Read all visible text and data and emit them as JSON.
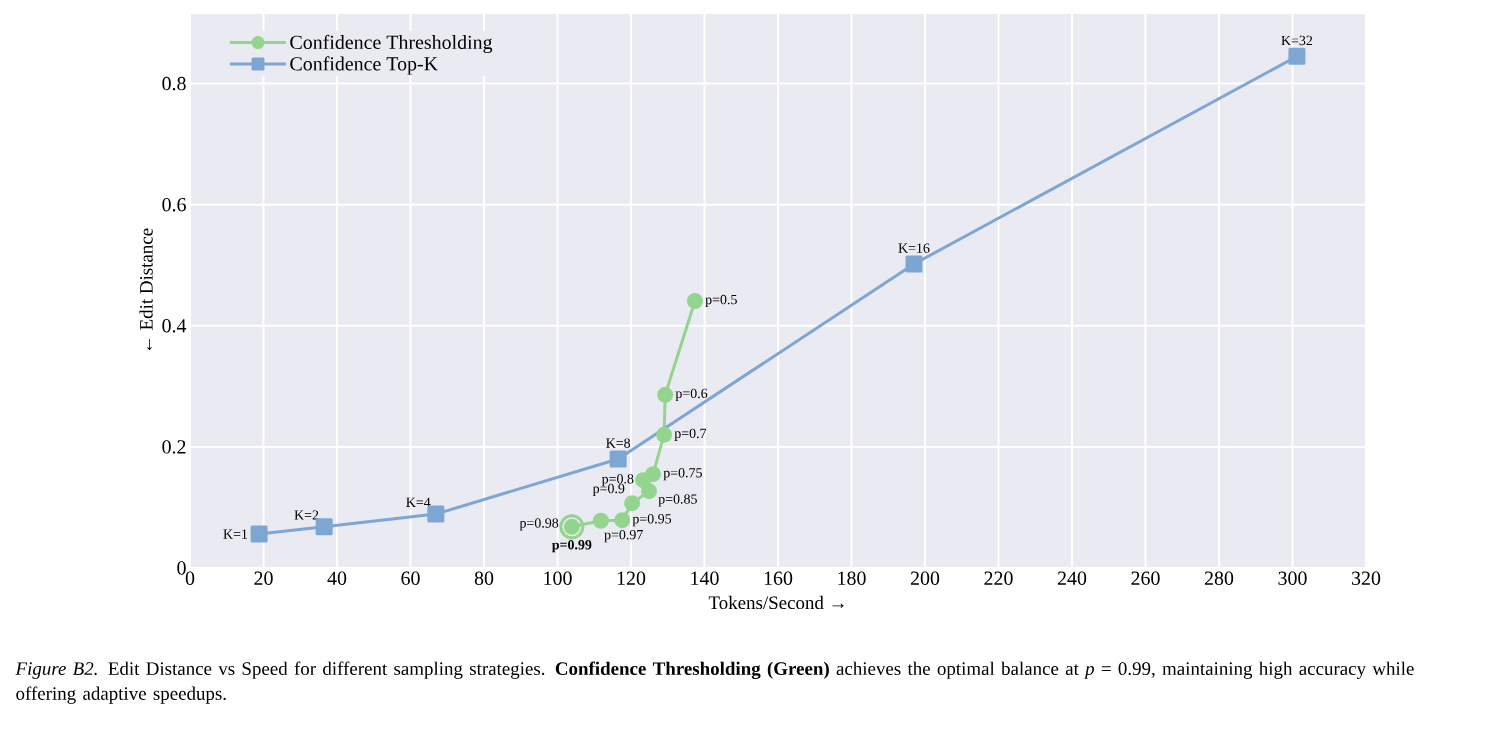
{
  "chart_data": {
    "type": "line",
    "xlabel": "Tokens/Second →",
    "ylabel": "← Edit Distance",
    "xlim": [
      0,
      320
    ],
    "ylim": [
      0,
      0.915
    ],
    "xticks": [
      0,
      20,
      40,
      60,
      80,
      100,
      120,
      140,
      160,
      180,
      200,
      220,
      240,
      260,
      280,
      300,
      320
    ],
    "yticks": [
      0,
      0.2,
      0.4,
      0.6,
      0.8
    ],
    "grid": true,
    "legend": "top left",
    "series": [
      {
        "name": "Confidence Thresholding",
        "color": "#93d58e",
        "marker": "circle",
        "x": [
          137.4,
          129.3,
          129.0,
          126.0,
          123.3,
          124.9,
          120.3,
          117.6,
          111.8,
          104.2,
          103.9
        ],
        "values": [
          0.441,
          0.286,
          0.22,
          0.155,
          0.145,
          0.127,
          0.107,
          0.079,
          0.078,
          null,
          0.068
        ]
      },
      {
        "name": "Confidence Top-K",
        "color": "#7ea6d3",
        "marker": "square",
        "x": [
          18.8,
          36.5,
          66.9,
          116.5,
          197.0,
          301.2
        ],
        "values": [
          0.056,
          0.068,
          0.089,
          0.18,
          0.502,
          0.845
        ]
      },
      {
        "type": "scatter",
        "color": "#93d58e",
        "marker": "circle",
        "x": [
          103.9
        ],
        "values": [
          0.068
        ]
      }
    ],
    "annotations": [
      {
        "text": "K=1",
        "x": 18.8,
        "y": 0.056
      },
      {
        "text": "K=2",
        "x": 36.5,
        "y": 0.068
      },
      {
        "text": "K=4",
        "x": 66.9,
        "y": 0.089
      },
      {
        "text": "K=8",
        "x": 116.5,
        "y": 0.18
      },
      {
        "text": "K=16",
        "x": 197.0,
        "y": 0.502
      },
      {
        "text": "K=32",
        "x": 301.2,
        "y": 0.845
      },
      {
        "text": "p=0.5",
        "x": 137.4,
        "y": 0.441
      },
      {
        "text": "p=0.6",
        "x": 129.3,
        "y": 0.286
      },
      {
        "text": "p=0.7",
        "x": 129.0,
        "y": 0.22
      },
      {
        "text": "p=0.75",
        "x": 126.0,
        "y": 0.155
      },
      {
        "text": "p=0.8",
        "x": 123.3,
        "y": 0.145
      },
      {
        "text": "p=0.85",
        "x": 124.9,
        "y": 0.127
      },
      {
        "text": "p=0.9",
        "x": 120.3,
        "y": 0.107
      },
      {
        "text": "p=0.95",
        "x": 117.6,
        "y": 0.079
      },
      {
        "text": "p=0.97",
        "x": 111.8,
        "y": 0.078
      },
      {
        "text": "p=0.98",
        "x": 104.2,
        "y": 0.072
      },
      {
        "text": "**p=0.99**",
        "x": 103.9,
        "y": 0.068
      },
      "*Figure B2.* Edit Distance vs Speed for different sampling strategies. **Confidence Thresholding (Green)** achieves the optimal balance at *p* = 0.99, maintaining high accuracy while offering adaptive speedups."
    ]
  }
}
